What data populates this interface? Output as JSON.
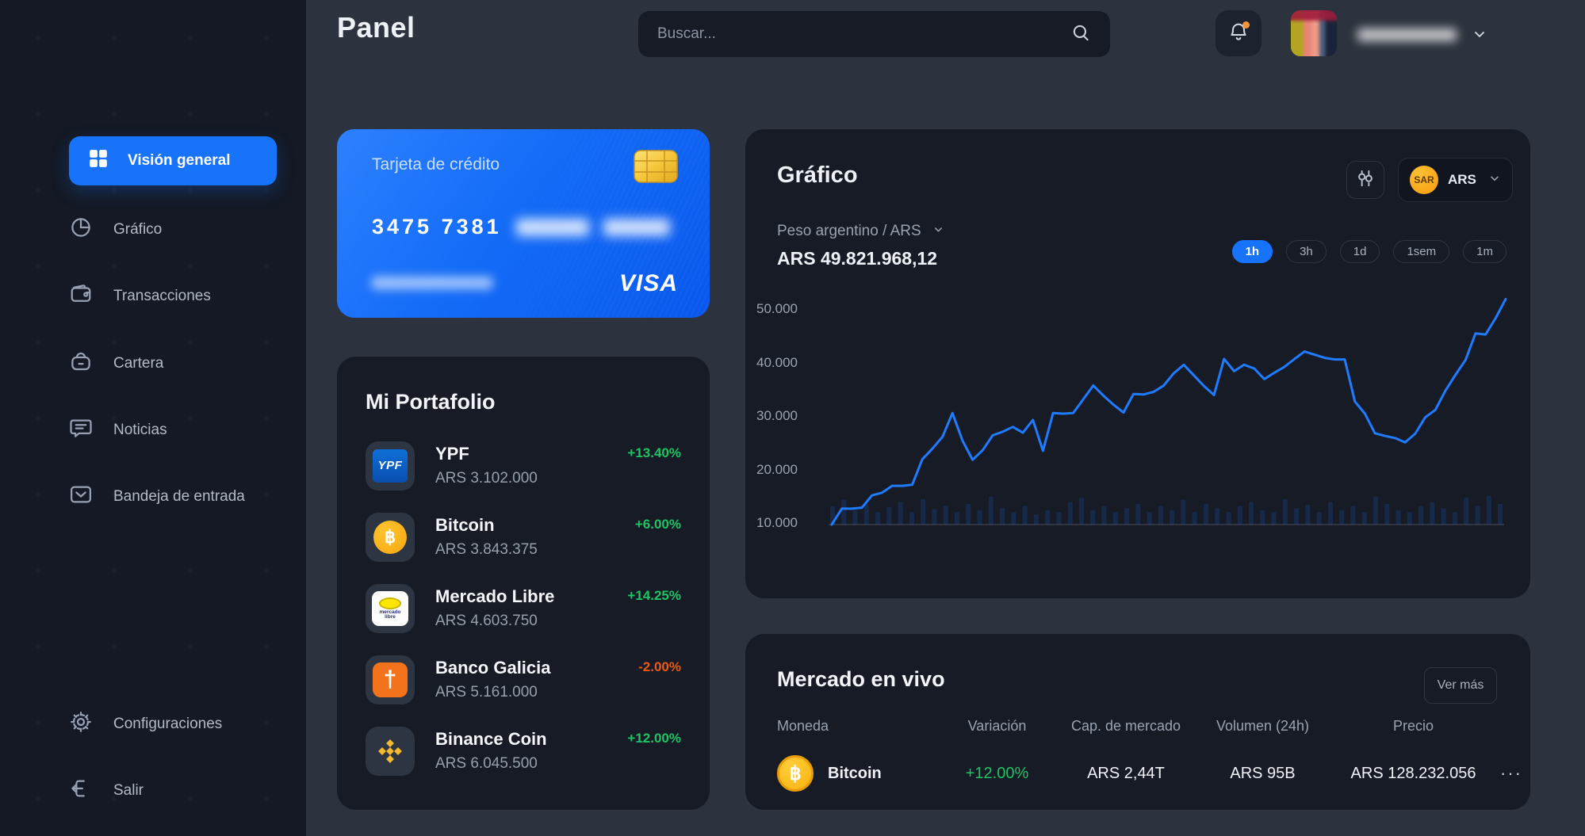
{
  "colors": {
    "accent": "#1673fa",
    "positive": "#1dc462",
    "negative": "#ed5a13",
    "line": "#1f7bff",
    "volume": "rgba(32,118,255,0.16)"
  },
  "header": {
    "title": "Panel",
    "search_placeholder": "Buscar..."
  },
  "sidebar": {
    "items": [
      {
        "label": "Visión general",
        "icon": "grid-icon",
        "active": true
      },
      {
        "label": "Gráfico",
        "icon": "pie-chart-icon",
        "active": false
      },
      {
        "label": "Transacciones",
        "icon": "wallet-icon",
        "active": false
      },
      {
        "label": "Cartera",
        "icon": "bag-icon",
        "active": false
      },
      {
        "label": "Noticias",
        "icon": "chat-icon",
        "active": false
      },
      {
        "label": "Bandeja de entrada",
        "icon": "inbox-icon",
        "active": false
      }
    ],
    "footer_items": [
      {
        "label": "Configuraciones",
        "icon": "gear-icon"
      },
      {
        "label": "Salir",
        "icon": "logout-icon"
      }
    ]
  },
  "credit_card": {
    "label": "Tarjeta de crédito",
    "number_visible": "3475 7381",
    "brand": "VISA"
  },
  "portfolio": {
    "title": "Mi Portafolio",
    "items": [
      {
        "name": "YPF",
        "value": "ARS 3.102.000",
        "change": "+13.40%",
        "logo": "ypf-logo"
      },
      {
        "name": "Bitcoin",
        "value": "ARS 3.843.375",
        "change": "+6.00%",
        "logo": "bitcoin-coin"
      },
      {
        "name": "Mercado Libre",
        "value": "ARS 4.603.750",
        "change": "+14.25%",
        "logo": "mercado-libre-logo"
      },
      {
        "name": "Banco Galicia",
        "value": "ARS 5.161.000",
        "change": "-2.00%",
        "logo": "banco-galicia-logo"
      },
      {
        "name": "Binance Coin",
        "value": "ARS 6.045.500",
        "change": "+12.00%",
        "logo": "binance-logo"
      }
    ],
    "meli_line1": "mercado",
    "meli_line2": "libre"
  },
  "chart_card": {
    "title": "Gráfico",
    "pair_label": "Peso argentino / ARS",
    "price": "ARS 49.821.968,12",
    "currency": {
      "coin_label": "SAR",
      "code": "ARS"
    },
    "ranges": [
      {
        "label": "1h",
        "active": true
      },
      {
        "label": "3h",
        "active": false
      },
      {
        "label": "1d",
        "active": false
      },
      {
        "label": "1sem",
        "active": false
      },
      {
        "label": "1m",
        "active": false
      }
    ]
  },
  "chart_data": {
    "type": "line",
    "title": "Gráfico",
    "pair": "Peso argentino / ARS",
    "current_value": "ARS 49.821.968,12",
    "xlabel": "",
    "ylabel": "",
    "ylim": [
      10000,
      52500
    ],
    "yticks": [
      10000,
      20000,
      30000,
      40000,
      50000
    ],
    "ytick_labels": [
      "10.000",
      "20.000",
      "30.000",
      "40.000",
      "50.000"
    ],
    "grid": "baseline-only",
    "legend": "none",
    "line_color": "#1f7bff",
    "volume_color": "rgba(32,118,255,0.16)",
    "series": [
      {
        "name": "ARS price",
        "values": [
          10000,
          13000,
          13000,
          13200,
          15500,
          16000,
          17300,
          17300,
          17500,
          22300,
          24300,
          26500,
          31000,
          25800,
          22200,
          24000,
          26800,
          27500,
          28400,
          27300,
          29700,
          23900,
          31000,
          30900,
          31000,
          33600,
          36200,
          34300,
          32600,
          31100,
          34600,
          34500,
          35000,
          36200,
          38500,
          40100,
          38100,
          36100,
          34400,
          41200,
          38900,
          40100,
          39400,
          37400,
          38600,
          39700,
          41200,
          42600,
          42000,
          41400,
          41100,
          41100,
          33200,
          30900,
          27200,
          26700,
          26300,
          25500,
          27100,
          30200,
          31600,
          35200,
          38200,
          41000,
          46000,
          45800,
          48900,
          52500
        ]
      }
    ],
    "volume_bars": [
      0.45,
      0.6,
      0.35,
      0.5,
      0.3,
      0.42,
      0.55,
      0.3,
      0.62,
      0.38,
      0.45,
      0.3,
      0.5,
      0.35,
      0.68,
      0.4,
      0.3,
      0.45,
      0.25,
      0.35,
      0.3,
      0.55,
      0.65,
      0.35,
      0.45,
      0.3,
      0.4,
      0.5,
      0.3,
      0.45,
      0.35,
      0.6,
      0.3,
      0.5,
      0.4,
      0.3,
      0.45,
      0.55,
      0.35,
      0.3,
      0.62,
      0.4,
      0.48,
      0.3,
      0.55,
      0.35,
      0.45,
      0.3,
      0.68,
      0.5,
      0.35,
      0.3,
      0.45,
      0.55,
      0.4,
      0.3,
      0.65,
      0.45,
      0.7,
      0.5
    ]
  },
  "market": {
    "title": "Mercado en vivo",
    "more_label": "Ver más",
    "columns": [
      "Moneda",
      "Variación",
      "Cap. de mercado",
      "Volumen (24h)",
      "Precio"
    ],
    "rows": [
      {
        "coin": "Bitcoin",
        "change": "+12.00%",
        "market_cap": "ARS 2,44T",
        "volume": "ARS 95B",
        "price": "ARS 128.232.056"
      }
    ]
  },
  "glyphs": {
    "bitcoin": "฿",
    "galicia": "†",
    "dots_menu": "···"
  }
}
